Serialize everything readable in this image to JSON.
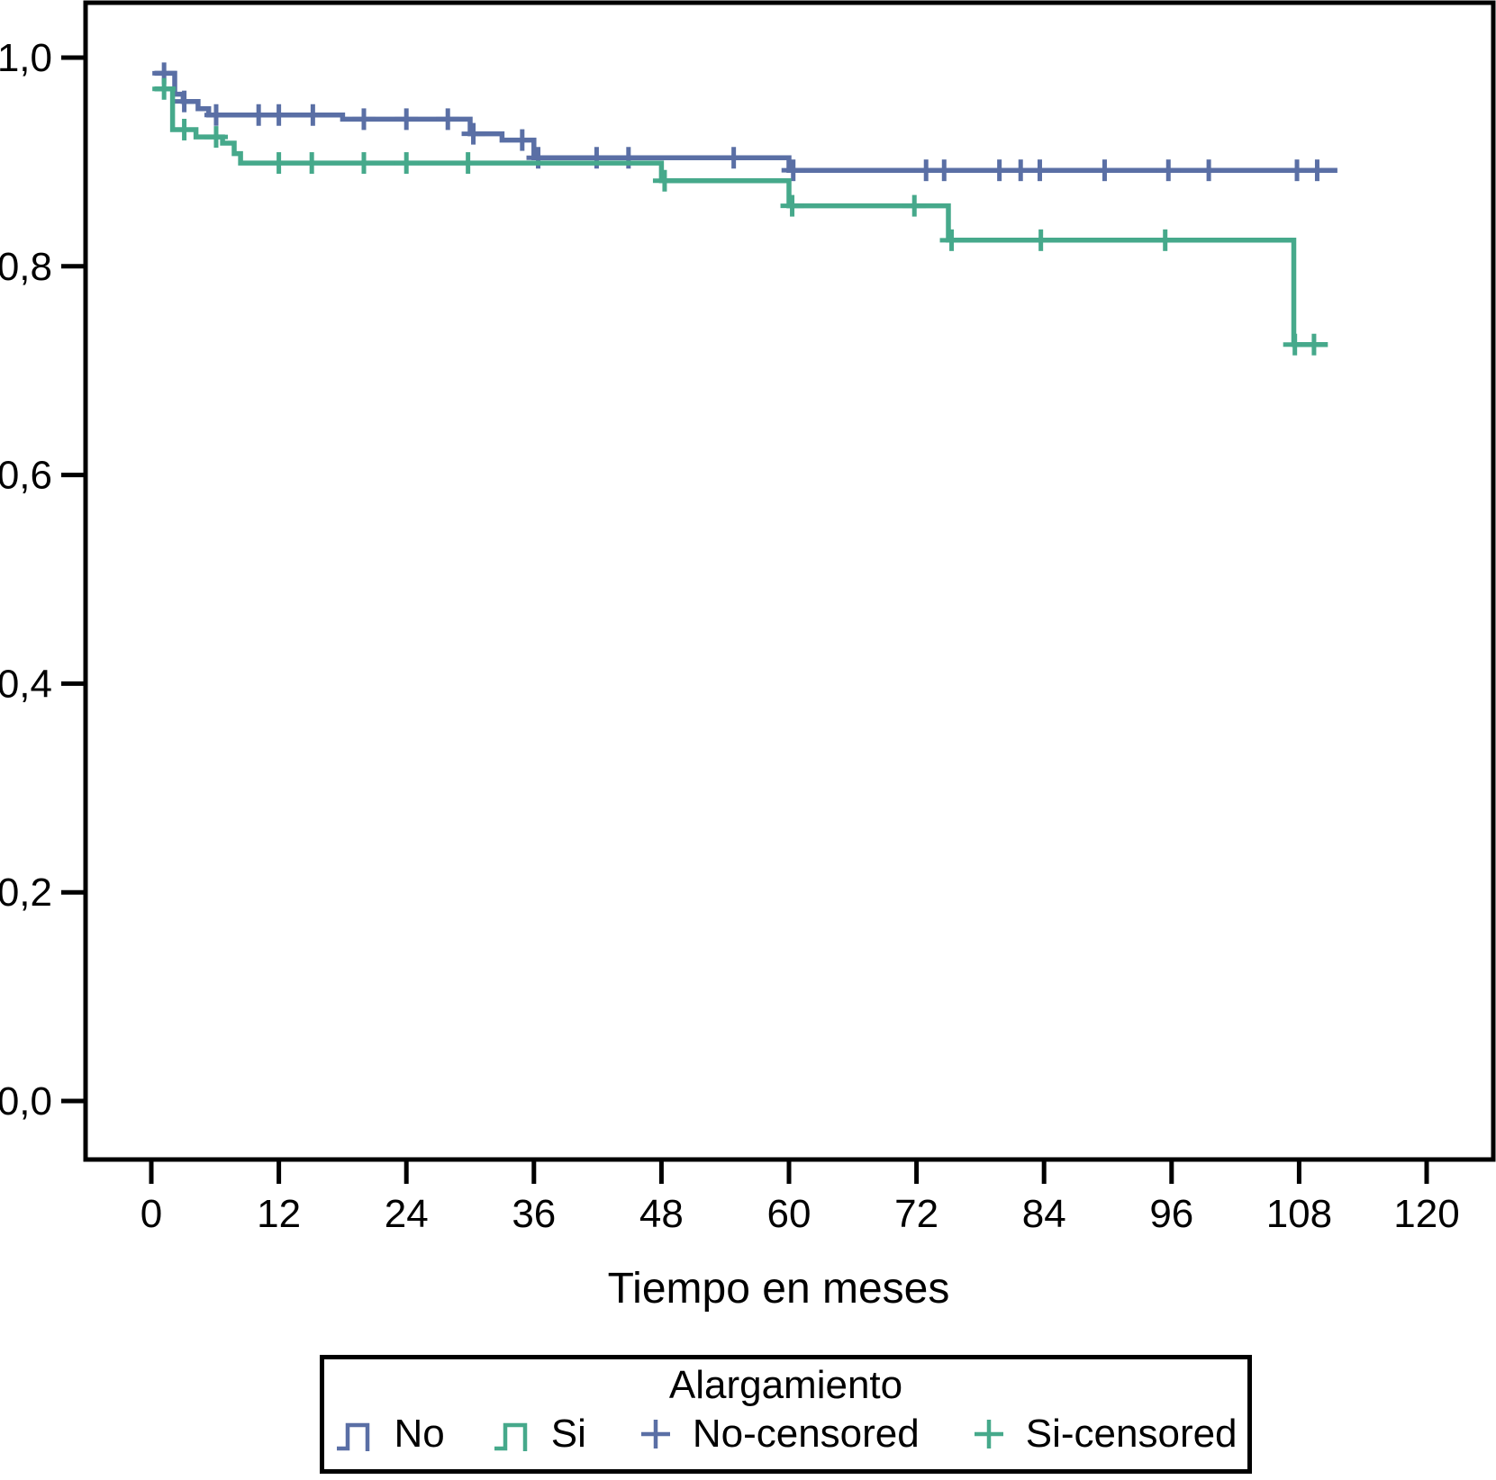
{
  "chart_data": {
    "type": "line",
    "subtype": "kaplan-meier-step-survival",
    "title": "",
    "xlabel": "Tiempo en meses",
    "ylabel": "",
    "xlim": [
      -6,
      126
    ],
    "ylim": [
      -0.05,
      1.05
    ],
    "grid": false,
    "x_axis": {
      "tick_values": [
        0,
        12,
        24,
        36,
        48,
        60,
        72,
        84,
        96,
        108,
        120
      ],
      "tick_labels": [
        "0",
        "12",
        "24",
        "36",
        "48",
        "60",
        "72",
        "84",
        "96",
        "108",
        "120"
      ]
    },
    "y_axis": {
      "tick_values": [
        0.0,
        0.2,
        0.4,
        0.6,
        0.8,
        1.0
      ],
      "tick_labels": [
        "0,0",
        "0,2",
        "0,4",
        "0,6",
        "0,8",
        "1,0"
      ]
    },
    "series": [
      {
        "name": "No",
        "color": "#5a6fa5",
        "start_t": 0.3,
        "end_t": 111.6,
        "steps": [
          [
            0.3,
            0.985
          ],
          [
            2.2,
            0.965
          ],
          [
            3.0,
            0.958
          ],
          [
            4.4,
            0.951
          ],
          [
            5.4,
            0.945
          ],
          [
            18.0,
            0.941
          ],
          [
            30.0,
            0.927
          ],
          [
            33.0,
            0.921
          ],
          [
            36.0,
            0.904
          ],
          [
            60.0,
            0.892
          ]
        ],
        "censored": [
          [
            1.2,
            0.985
          ],
          [
            3.1,
            0.958
          ],
          [
            6.1,
            0.945
          ],
          [
            10.1,
            0.945
          ],
          [
            12.0,
            0.945
          ],
          [
            15.2,
            0.945
          ],
          [
            20.0,
            0.941
          ],
          [
            24.0,
            0.941
          ],
          [
            27.9,
            0.941
          ],
          [
            30.3,
            0.927
          ],
          [
            34.9,
            0.921
          ],
          [
            36.4,
            0.904
          ],
          [
            41.9,
            0.904
          ],
          [
            44.9,
            0.904
          ],
          [
            54.8,
            0.904
          ],
          [
            60.4,
            0.892
          ],
          [
            72.9,
            0.892
          ],
          [
            74.6,
            0.892
          ],
          [
            79.8,
            0.892
          ],
          [
            81.8,
            0.892
          ],
          [
            83.6,
            0.892
          ],
          [
            89.7,
            0.892
          ],
          [
            95.7,
            0.892
          ],
          [
            99.5,
            0.892
          ],
          [
            107.8,
            0.892
          ],
          [
            109.7,
            0.892
          ]
        ]
      },
      {
        "name": "Si",
        "color": "#46a98b",
        "start_t": 0.3,
        "end_t": 110.7,
        "steps": [
          [
            0.3,
            0.97
          ],
          [
            2.0,
            0.931
          ],
          [
            4.2,
            0.924
          ],
          [
            6.7,
            0.918
          ],
          [
            7.8,
            0.908
          ],
          [
            8.4,
            0.899
          ],
          [
            48.0,
            0.882
          ],
          [
            60.0,
            0.858
          ],
          [
            75.0,
            0.825
          ],
          [
            107.5,
            0.725
          ]
        ],
        "censored": [
          [
            1.2,
            0.97
          ],
          [
            3.1,
            0.931
          ],
          [
            6.1,
            0.924
          ],
          [
            12.0,
            0.899
          ],
          [
            15.1,
            0.899
          ],
          [
            20.0,
            0.899
          ],
          [
            24.0,
            0.899
          ],
          [
            29.8,
            0.899
          ],
          [
            48.3,
            0.882
          ],
          [
            60.3,
            0.858
          ],
          [
            71.8,
            0.858
          ],
          [
            75.3,
            0.825
          ],
          [
            83.7,
            0.825
          ],
          [
            95.4,
            0.825
          ],
          [
            107.6,
            0.725
          ],
          [
            109.4,
            0.725
          ]
        ]
      }
    ],
    "legend": {
      "position": "bottom-center-boxed",
      "title": "Alargamiento",
      "entries": [
        {
          "label": "No",
          "symbol": "step",
          "color": "#5a6fa5"
        },
        {
          "label": "Si",
          "symbol": "step",
          "color": "#46a98b"
        },
        {
          "label": "No-censored",
          "symbol": "plus",
          "color": "#5a6fa5"
        },
        {
          "label": "Si-censored",
          "symbol": "plus",
          "color": "#46a98b"
        }
      ]
    },
    "colors": {
      "frame": "#000000",
      "text": "#000000",
      "background": "#ffffff"
    }
  }
}
